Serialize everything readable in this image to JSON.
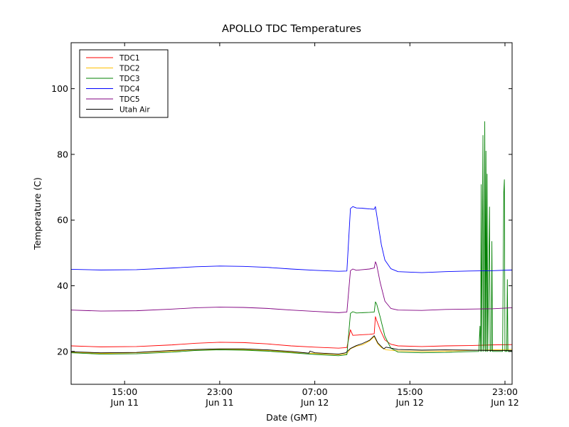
{
  "chart_data": {
    "type": "line",
    "title": "APOLLO TDC Temperatures",
    "xlabel": "Date (GMT)",
    "ylabel": "Temperature (C)",
    "xlim": [
      10.5,
      47.6
    ],
    "ylim": [
      10,
      114
    ],
    "x_unit": "hours since Jun 11 00:00 GMT",
    "x_ticks": [
      {
        "x": 15,
        "line1": "15:00",
        "line2": "Jun 11"
      },
      {
        "x": 23,
        "line1": "23:00",
        "line2": "Jun 11"
      },
      {
        "x": 31,
        "line1": "07:00",
        "line2": "Jun 12"
      },
      {
        "x": 39,
        "line1": "15:00",
        "line2": "Jun 12"
      },
      {
        "x": 47,
        "line1": "23:00",
        "line2": "Jun 12"
      }
    ],
    "y_ticks": [
      20,
      40,
      60,
      80,
      100
    ],
    "legend_position": "top-left",
    "series": [
      {
        "name": "TDC1",
        "color": "#ff0000",
        "points": [
          [
            10.5,
            21.7
          ],
          [
            13,
            21.4
          ],
          [
            16,
            21.5
          ],
          [
            19,
            22.0
          ],
          [
            21,
            22.5
          ],
          [
            23,
            22.8
          ],
          [
            25,
            22.7
          ],
          [
            27,
            22.3
          ],
          [
            29,
            21.7
          ],
          [
            31,
            21.3
          ],
          [
            33,
            21.0
          ],
          [
            33.7,
            21.2
          ],
          [
            34.0,
            26.6
          ],
          [
            34.2,
            24.9
          ],
          [
            34.6,
            25.0
          ],
          [
            35.0,
            25.1
          ],
          [
            35.6,
            25.2
          ],
          [
            36.0,
            25.4
          ],
          [
            36.1,
            30.6
          ],
          [
            36.2,
            29.5
          ],
          [
            36.5,
            26.6
          ],
          [
            36.9,
            23.5
          ],
          [
            37.4,
            22.2
          ],
          [
            38,
            21.7
          ],
          [
            40,
            21.5
          ],
          [
            42,
            21.7
          ],
          [
            44,
            21.8
          ],
          [
            46,
            22.0
          ],
          [
            47.6,
            22.1
          ]
        ]
      },
      {
        "name": "TDC2",
        "color": "#ffbf00",
        "points": [
          [
            10.5,
            19.8
          ],
          [
            13,
            19.4
          ],
          [
            16,
            19.6
          ],
          [
            19,
            20.1
          ],
          [
            21,
            20.5
          ],
          [
            23,
            20.7
          ],
          [
            25,
            20.6
          ],
          [
            27,
            20.3
          ],
          [
            29,
            19.8
          ],
          [
            31,
            19.4
          ],
          [
            33,
            19.0
          ],
          [
            33.7,
            19.3
          ],
          [
            34.0,
            20.8
          ],
          [
            34.5,
            21.6
          ],
          [
            35,
            22.0
          ],
          [
            35.6,
            23.2
          ],
          [
            36.0,
            24.5
          ],
          [
            36.3,
            22.3
          ],
          [
            36.6,
            21.2
          ],
          [
            37.0,
            20.5
          ],
          [
            38,
            20.2
          ],
          [
            40,
            20.0
          ],
          [
            42,
            20.1
          ],
          [
            44,
            20.3
          ],
          [
            46,
            20.5
          ],
          [
            47.6,
            20.6
          ]
        ]
      },
      {
        "name": "TDC3",
        "color": "#008000",
        "points": [
          [
            10.5,
            19.6
          ],
          [
            13,
            19.2
          ],
          [
            16,
            19.3
          ],
          [
            19,
            19.8
          ],
          [
            21,
            20.3
          ],
          [
            23,
            20.5
          ],
          [
            25,
            20.4
          ],
          [
            27,
            20.1
          ],
          [
            29,
            19.6
          ],
          [
            31,
            19.1
          ],
          [
            33,
            18.7
          ],
          [
            33.7,
            19.0
          ],
          [
            34.0,
            31.6
          ],
          [
            34.2,
            32.1
          ],
          [
            34.5,
            31.7
          ],
          [
            35,
            31.8
          ],
          [
            35.6,
            31.9
          ],
          [
            36.0,
            32.0
          ],
          [
            36.1,
            35.1
          ],
          [
            36.2,
            34.5
          ],
          [
            36.5,
            30.5
          ],
          [
            36.9,
            24.6
          ],
          [
            37.4,
            21.0
          ],
          [
            38,
            19.8
          ],
          [
            40,
            19.6
          ],
          [
            42,
            19.7
          ],
          [
            43.5,
            19.9
          ],
          [
            44.8,
            20.0
          ],
          [
            44.9,
            27.7
          ],
          [
            44.95,
            20.0
          ],
          [
            45.0,
            70.8
          ],
          [
            45.05,
            20.0
          ],
          [
            45.15,
            85.8
          ],
          [
            45.2,
            20.0
          ],
          [
            45.25,
            22.4
          ],
          [
            45.3,
            90.0
          ],
          [
            45.35,
            20.0
          ],
          [
            45.4,
            81.0
          ],
          [
            45.45,
            20.0
          ],
          [
            45.5,
            74.0
          ],
          [
            45.55,
            20.0
          ],
          [
            45.7,
            64.0
          ],
          [
            45.75,
            20.0
          ],
          [
            45.85,
            20.2
          ],
          [
            45.9,
            53.5
          ],
          [
            45.95,
            20.0
          ],
          [
            46.8,
            20.0
          ],
          [
            46.9,
            68.5
          ],
          [
            46.95,
            72.3
          ],
          [
            47.0,
            20.0
          ],
          [
            47.15,
            20.0
          ],
          [
            47.2,
            41.9
          ],
          [
            47.25,
            20.0
          ],
          [
            47.6,
            20.1
          ]
        ]
      },
      {
        "name": "TDC4",
        "color": "#0000ff",
        "points": [
          [
            10.5,
            45.0
          ],
          [
            13,
            44.8
          ],
          [
            16,
            44.9
          ],
          [
            19,
            45.4
          ],
          [
            21,
            45.8
          ],
          [
            23,
            46.0
          ],
          [
            25,
            45.9
          ],
          [
            27,
            45.6
          ],
          [
            29,
            45.1
          ],
          [
            31,
            44.7
          ],
          [
            33,
            44.4
          ],
          [
            33.7,
            44.5
          ],
          [
            34.0,
            63.5
          ],
          [
            34.2,
            64.1
          ],
          [
            34.5,
            63.7
          ],
          [
            35,
            63.6
          ],
          [
            35.6,
            63.4
          ],
          [
            36.0,
            63.3
          ],
          [
            36.1,
            64.1
          ],
          [
            36.3,
            59.5
          ],
          [
            36.6,
            52.5
          ],
          [
            36.9,
            47.8
          ],
          [
            37.4,
            45.2
          ],
          [
            38,
            44.3
          ],
          [
            40,
            44.0
          ],
          [
            42,
            44.3
          ],
          [
            44,
            44.5
          ],
          [
            46,
            44.6
          ],
          [
            47.6,
            44.8
          ]
        ]
      },
      {
        "name": "TDC5",
        "color": "#800080",
        "points": [
          [
            10.5,
            32.6
          ],
          [
            13,
            32.3
          ],
          [
            16,
            32.4
          ],
          [
            19,
            32.9
          ],
          [
            21,
            33.3
          ],
          [
            23,
            33.5
          ],
          [
            25,
            33.4
          ],
          [
            27,
            33.1
          ],
          [
            29,
            32.6
          ],
          [
            31,
            32.2
          ],
          [
            33,
            31.8
          ],
          [
            33.7,
            32.0
          ],
          [
            34.0,
            44.6
          ],
          [
            34.2,
            45.1
          ],
          [
            34.5,
            44.7
          ],
          [
            35,
            44.9
          ],
          [
            35.6,
            45.1
          ],
          [
            36.0,
            45.4
          ],
          [
            36.1,
            47.3
          ],
          [
            36.2,
            46.5
          ],
          [
            36.5,
            41.0
          ],
          [
            36.9,
            35.3
          ],
          [
            37.4,
            33.1
          ],
          [
            38,
            32.6
          ],
          [
            40,
            32.5
          ],
          [
            42,
            32.8
          ],
          [
            44,
            32.9
          ],
          [
            46,
            33.0
          ],
          [
            47.6,
            33.3
          ]
        ]
      },
      {
        "name": "Utah Air",
        "color": "#000000",
        "points": [
          [
            10.5,
            19.9
          ],
          [
            13,
            19.6
          ],
          [
            16,
            19.7
          ],
          [
            19,
            20.3
          ],
          [
            21,
            20.6
          ],
          [
            23,
            20.8
          ],
          [
            25,
            20.8
          ],
          [
            27,
            20.5
          ],
          [
            29,
            20.0
          ],
          [
            30.5,
            19.5
          ],
          [
            30.6,
            20.1
          ],
          [
            31,
            19.6
          ],
          [
            33,
            19.2
          ],
          [
            33.6,
            19.6
          ],
          [
            34.0,
            20.9
          ],
          [
            34.5,
            21.8
          ],
          [
            35,
            22.4
          ],
          [
            35.6,
            23.4
          ],
          [
            36.0,
            24.8
          ],
          [
            36.3,
            22.6
          ],
          [
            36.6,
            21.5
          ],
          [
            36.8,
            20.8
          ],
          [
            37.0,
            21.3
          ],
          [
            38,
            20.6
          ],
          [
            40,
            20.4
          ],
          [
            42,
            20.5
          ],
          [
            44,
            20.4
          ],
          [
            46,
            20.3
          ],
          [
            47.6,
            20.3
          ]
        ]
      }
    ]
  }
}
